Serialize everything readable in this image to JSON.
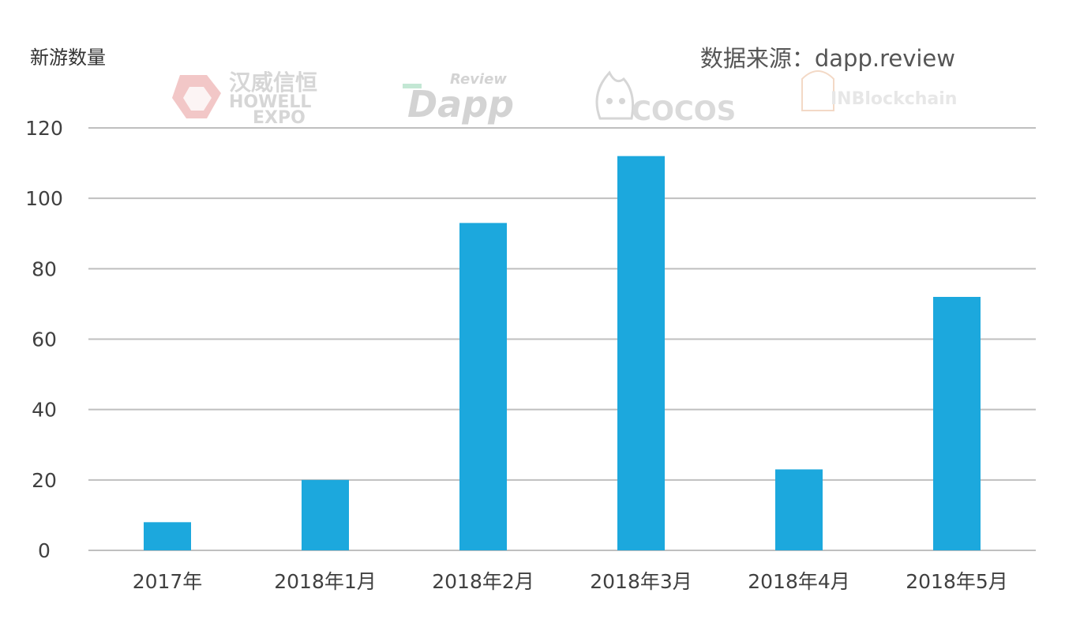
{
  "chart_data": {
    "type": "bar",
    "title": "",
    "ylabel": "新游数量",
    "xlabel": "",
    "source": "数据来源：dapp.review",
    "categories": [
      "2017年",
      "2018年1月",
      "2018年2月",
      "2018年3月",
      "2018年4月",
      "2018年5月"
    ],
    "series": [
      {
        "values": [
          8,
          20,
          93,
          112,
          23,
          72
        ]
      }
    ],
    "ylim": [
      0,
      120
    ],
    "yticks": [
      0,
      20,
      40,
      60,
      80,
      100,
      120
    ],
    "grid": true,
    "bar_color": "#1ca8dd",
    "grid_color": "#bfbfbf"
  },
  "watermarks": [
    {
      "name": "howell-expo",
      "lines": [
        "汉威信恒",
        "HOWELL",
        "EXPO"
      ],
      "color": "#c9c9c9",
      "accent": "#e8a0a0"
    },
    {
      "name": "dapp-review",
      "lines": [
        "Review",
        "Dapp"
      ],
      "color": "#c9c9c9",
      "accent": "#a8dcc0"
    },
    {
      "name": "cocos",
      "lines": [
        "COCOS"
      ],
      "color": "#cfcfcf"
    },
    {
      "name": "inblockchain",
      "lines": [
        "INBlockchain"
      ],
      "color": "#e0e0e0",
      "accent": "#f2c9a8"
    }
  ]
}
